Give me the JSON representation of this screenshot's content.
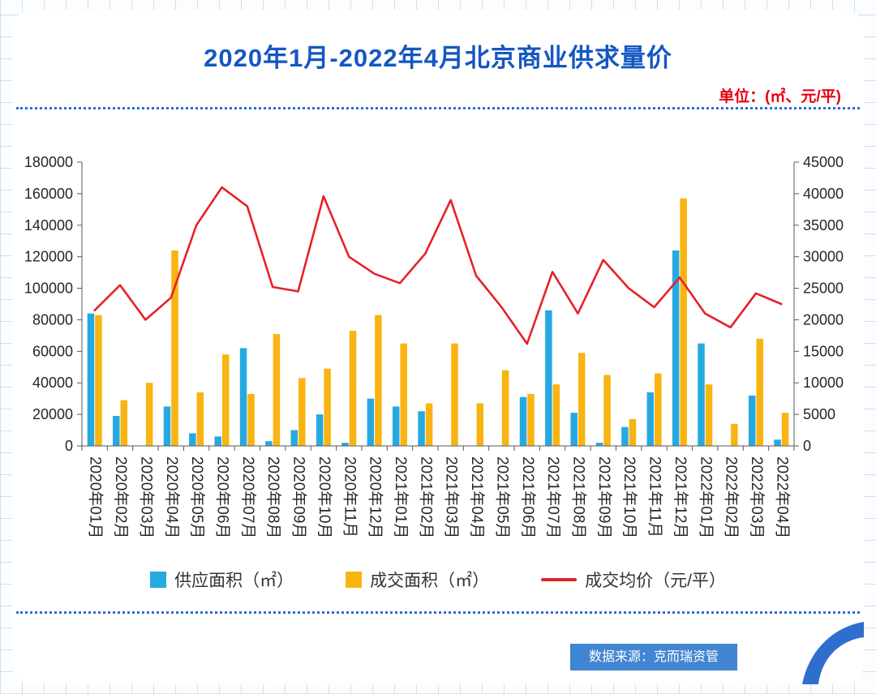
{
  "page": {
    "title": "2020年1月-2022年4月北京商业供求量价",
    "unit_label": "单位：(㎡、元/平)",
    "source_label": "数据来源：克而瑞资管"
  },
  "colors": {
    "title_blue": "#1557C2",
    "unit_red": "#E60012",
    "supply_bar": "#26A9E0",
    "deal_bar": "#F9B412",
    "price_line": "#E62129",
    "badge_blue": "#4285D2",
    "dotted_line_blue": "#2B6CD9"
  },
  "legend": [
    {
      "label": "供应面积（㎡）",
      "color": "#26A9E0",
      "type": "bar"
    },
    {
      "label": "成交面积（㎡）",
      "color": "#F9B412",
      "type": "bar"
    },
    {
      "label": "成交均价（元/平）",
      "color": "#E62129",
      "type": "line"
    }
  ],
  "chart_data": {
    "type": "bar+line",
    "title": "2020年1月-2022年4月北京商业供求量价",
    "categories": [
      "2020年01月",
      "2020年02月",
      "2020年03月",
      "2020年04月",
      "2020年05月",
      "2020年06月",
      "2020年07月",
      "2020年08月",
      "2020年09月",
      "2020年10月",
      "2020年11月",
      "2020年12月",
      "2021年01月",
      "2021年02月",
      "2021年03月",
      "2021年04月",
      "2021年05月",
      "2021年06月",
      "2021年07月",
      "2021年08月",
      "2021年09月",
      "2021年10月",
      "2021年11月",
      "2021年12月",
      "2022年01月",
      "2022年02月",
      "2022年03月",
      "2022年04月"
    ],
    "series": [
      {
        "name": "供应面积（㎡）",
        "type": "bar",
        "axis": "left",
        "color": "#26A9E0",
        "values": [
          84000,
          19000,
          0,
          25000,
          8000,
          6000,
          62000,
          3000,
          10000,
          20000,
          2000,
          30000,
          25000,
          22000,
          0,
          0,
          0,
          31000,
          86000,
          21000,
          2000,
          12000,
          34000,
          124000,
          65000,
          0,
          32000,
          4000
        ]
      },
      {
        "name": "成交面积（㎡）",
        "type": "bar",
        "axis": "left",
        "color": "#F9B412",
        "values": [
          83000,
          29000,
          40000,
          124000,
          34000,
          58000,
          33000,
          71000,
          43000,
          49000,
          73000,
          83000,
          65000,
          27000,
          65000,
          27000,
          48000,
          33000,
          39000,
          59000,
          45000,
          17000,
          46000,
          157000,
          39000,
          14000,
          68000,
          21000
        ]
      },
      {
        "name": "成交均价（元/平）",
        "type": "line",
        "axis": "right",
        "color": "#E62129",
        "values": [
          21500,
          25500,
          20000,
          23500,
          35000,
          41000,
          38000,
          25200,
          24500,
          39600,
          30000,
          27300,
          25800,
          30500,
          39000,
          27000,
          22000,
          16200,
          27600,
          21000,
          29500,
          25000,
          22000,
          26700,
          21000,
          18800,
          24200,
          22500
        ]
      }
    ],
    "left_axis": {
      "min": 0,
      "max": 180000,
      "step": 20000
    },
    "right_axis": {
      "min": 0,
      "max": 45000,
      "step": 5000
    },
    "grid": false,
    "legend_position": "bottom"
  }
}
